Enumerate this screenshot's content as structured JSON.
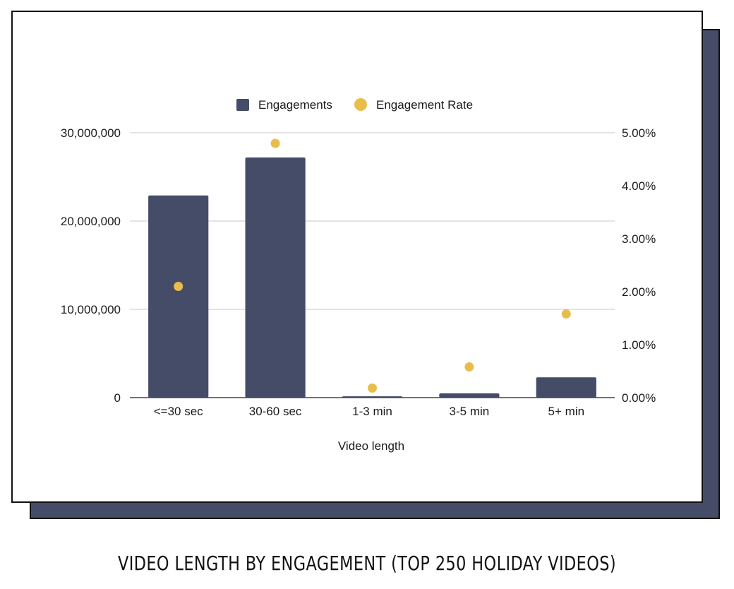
{
  "caption": "VIDEO LENGTH BY ENGAGEMENT (TOP 250 HOLIDAY VIDEOS)",
  "colors": {
    "bar": "#454c68",
    "dot": "#e8bd4c",
    "grid": "#c8c8c8",
    "axis": "#444444"
  },
  "chart_data": {
    "type": "bar",
    "title": "",
    "xlabel": "Video length",
    "ylabel": "",
    "categories": [
      "<=30 sec",
      "30-60 sec",
      "1-3 min",
      "3-5 min",
      "5+ min"
    ],
    "series": [
      {
        "name": "Engagements",
        "type": "bar",
        "axis": "left",
        "values": [
          22900000,
          27200000,
          150000,
          480000,
          2300000
        ]
      },
      {
        "name": "Engagement Rate",
        "type": "scatter",
        "axis": "right",
        "values": [
          2.1,
          4.8,
          0.18,
          0.58,
          1.58
        ]
      }
    ],
    "ylim": [
      0,
      30000000
    ],
    "y_ticks": [
      0,
      10000000,
      20000000,
      30000000
    ],
    "y_tick_labels": [
      "0",
      "10,000,000",
      "20,000,000",
      "30,000,000"
    ],
    "y2lim": [
      0,
      5
    ],
    "y2_ticks": [
      0,
      1,
      2,
      3,
      4,
      5
    ],
    "y2_tick_labels": [
      "0.00%",
      "1.00%",
      "2.00%",
      "3.00%",
      "4.00%",
      "5.00%"
    ],
    "legend": {
      "position": "top-center",
      "items": [
        "Engagements",
        "Engagement Rate"
      ]
    },
    "grid": true
  }
}
